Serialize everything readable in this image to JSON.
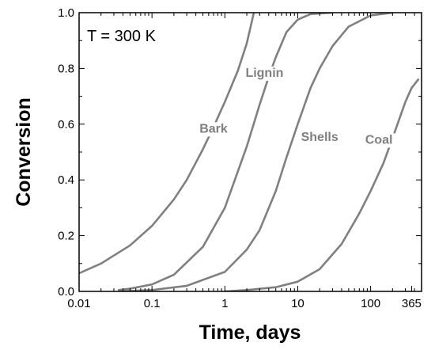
{
  "chart_data": {
    "type": "line",
    "title": "",
    "annotation": "T = 300 K",
    "xlabel": "Time, days",
    "ylabel": "Conversion",
    "xscale": "log",
    "xlim": [
      0.01,
      500
    ],
    "ylim": [
      0,
      1.0
    ],
    "grid": false,
    "legend": "inline labels",
    "line_color": "#808080",
    "x_ticks": [
      {
        "value": 0.01,
        "label": "0.01"
      },
      {
        "value": 0.1,
        "label": "0.1"
      },
      {
        "value": 1,
        "label": "1"
      },
      {
        "value": 10,
        "label": "10"
      },
      {
        "value": 100,
        "label": "100"
      },
      {
        "value": 365,
        "label": "365"
      }
    ],
    "y_ticks": [
      {
        "value": 0.0,
        "label": "0.0"
      },
      {
        "value": 0.2,
        "label": "0.2"
      },
      {
        "value": 0.4,
        "label": "0.4"
      },
      {
        "value": 0.6,
        "label": "0.6"
      },
      {
        "value": 0.8,
        "label": "0.8"
      },
      {
        "value": 1.0,
        "label": "1.0"
      }
    ],
    "series": [
      {
        "name": "Bark",
        "points": [
          [
            0.01,
            0.065
          ],
          [
            0.02,
            0.1
          ],
          [
            0.05,
            0.165
          ],
          [
            0.1,
            0.235
          ],
          [
            0.2,
            0.33
          ],
          [
            0.3,
            0.4
          ],
          [
            0.5,
            0.51
          ],
          [
            0.7,
            0.59
          ],
          [
            1.0,
            0.68
          ],
          [
            1.5,
            0.79
          ],
          [
            2.0,
            0.89
          ],
          [
            2.5,
            1.0
          ]
        ]
      },
      {
        "name": "Lignin",
        "points": [
          [
            0.035,
            0.005
          ],
          [
            0.05,
            0.01
          ],
          [
            0.1,
            0.025
          ],
          [
            0.2,
            0.06
          ],
          [
            0.5,
            0.16
          ],
          [
            1.0,
            0.3
          ],
          [
            2.0,
            0.52
          ],
          [
            3.0,
            0.67
          ],
          [
            4.0,
            0.77
          ],
          [
            5.0,
            0.84
          ],
          [
            7.0,
            0.93
          ],
          [
            10.0,
            0.975
          ],
          [
            15.0,
            0.995
          ],
          [
            30.0,
            1.0
          ]
        ]
      },
      {
        "name": "Shells",
        "points": [
          [
            0.035,
            0.0
          ],
          [
            0.1,
            0.005
          ],
          [
            0.3,
            0.02
          ],
          [
            1.0,
            0.07
          ],
          [
            2.0,
            0.15
          ],
          [
            3.0,
            0.22
          ],
          [
            5.0,
            0.36
          ],
          [
            7.0,
            0.48
          ],
          [
            10.0,
            0.6
          ],
          [
            15.0,
            0.73
          ],
          [
            20.0,
            0.8
          ],
          [
            30.0,
            0.88
          ],
          [
            50.0,
            0.95
          ],
          [
            100.0,
            0.99
          ],
          [
            200.0,
            1.0
          ]
        ]
      },
      {
        "name": "Coal",
        "points": [
          [
            1.0,
            0.0
          ],
          [
            2.0,
            0.005
          ],
          [
            5.0,
            0.015
          ],
          [
            10.0,
            0.035
          ],
          [
            20.0,
            0.08
          ],
          [
            40.0,
            0.17
          ],
          [
            70.0,
            0.28
          ],
          [
            100.0,
            0.36
          ],
          [
            150.0,
            0.46
          ],
          [
            200.0,
            0.55
          ],
          [
            300.0,
            0.68
          ],
          [
            365.0,
            0.73
          ],
          [
            450.0,
            0.76
          ]
        ]
      }
    ]
  }
}
